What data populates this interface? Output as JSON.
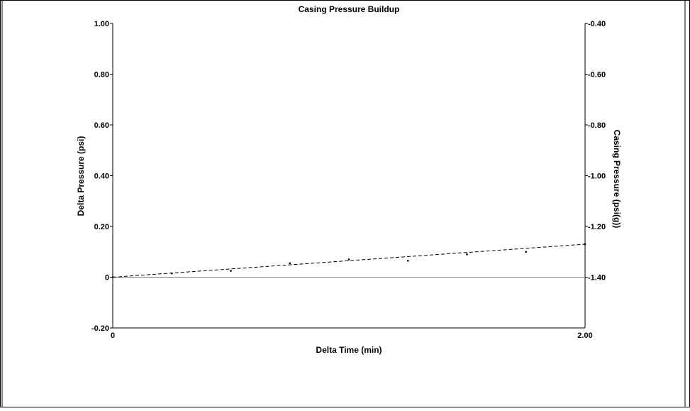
{
  "chart_data": {
    "type": "scatter",
    "title": "Casing Pressure Buildup",
    "xlabel": "Delta Time (min)",
    "ylabel_left": "Delta Pressure (psi)",
    "ylabel_right": "Casing Pressure (psi(g))",
    "xlim": [
      0,
      2.0
    ],
    "ylim_left": [
      -0.2,
      1.0
    ],
    "ylim_right": [
      -1.6,
      -0.4
    ],
    "x_ticks": [
      "0",
      "2.00"
    ],
    "y_left_ticks": [
      {
        "value": 1.0,
        "label": "1.00"
      },
      {
        "value": 0.8,
        "label": "0.80"
      },
      {
        "value": 0.6,
        "label": "0.60"
      },
      {
        "value": 0.4,
        "label": "0.40"
      },
      {
        "value": 0.2,
        "label": "0.20"
      },
      {
        "value": 0.0,
        "label": "0"
      },
      {
        "value": -0.2,
        "label": "-0.20"
      }
    ],
    "y_right_ticks": [
      {
        "value": -0.4,
        "label": "-0.40"
      },
      {
        "value": -0.6,
        "label": "-0.60"
      },
      {
        "value": -0.8,
        "label": "-0.80"
      },
      {
        "value": -1.0,
        "label": "-1.00"
      },
      {
        "value": -1.2,
        "label": "-1.20"
      },
      {
        "value": -1.4,
        "label": "-1.40"
      }
    ],
    "series": [
      {
        "x": [
          0,
          0.25,
          0.5,
          0.75,
          1.0,
          1.25,
          1.5,
          1.75,
          2.0
        ],
        "y": [
          0.0,
          0.015,
          0.025,
          0.055,
          0.07,
          0.065,
          0.09,
          0.1,
          0.13
        ],
        "style": "points"
      }
    ],
    "trendline": {
      "x": [
        0,
        2.0
      ],
      "y": [
        0.0,
        0.13
      ],
      "style": "dashed"
    },
    "reference_line": {
      "y": 0.0,
      "color": "#808080"
    },
    "grid": false,
    "legend": "none",
    "colors": {
      "axis": "#000000",
      "points": "#000000",
      "trend": "#000000",
      "zero_line": "#808080"
    }
  }
}
